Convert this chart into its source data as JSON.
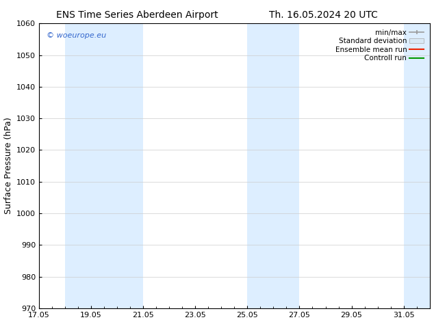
{
  "title_left": "ENS Time Series Aberdeen Airport",
  "title_right": "Th. 16.05.2024 20 UTC",
  "ylabel": "Surface Pressure (hPa)",
  "ylim": [
    970,
    1060
  ],
  "yticks": [
    970,
    980,
    990,
    1000,
    1010,
    1020,
    1030,
    1040,
    1050,
    1060
  ],
  "xlim": [
    0,
    15
  ],
  "xtick_positions": [
    0,
    2,
    4,
    6,
    8,
    10,
    12,
    14
  ],
  "xtick_labels": [
    "17.05",
    "19.05",
    "21.05",
    "23.05",
    "25.05",
    "27.05",
    "29.05",
    "31.05"
  ],
  "shade_bands": [
    {
      "x_start": 1.0,
      "x_end": 3.0,
      "color": "#ddeeff"
    },
    {
      "x_start": 3.0,
      "x_end": 4.0,
      "color": "#ddeeff"
    },
    {
      "x_start": 8.0,
      "x_end": 9.0,
      "color": "#ddeeff"
    },
    {
      "x_start": 9.0,
      "x_end": 10.0,
      "color": "#ddeeff"
    },
    {
      "x_start": 14.0,
      "x_end": 15.0,
      "color": "#ddeeff"
    }
  ],
  "copyright_text": "© woeurope.eu",
  "copyright_color": "#3366cc",
  "legend_entries": [
    "min/max",
    "Standard deviation",
    "Ensemble mean run",
    "Controll run"
  ],
  "legend_line_colors": [
    "#999999",
    "#bbbbbb",
    "#ee2200",
    "#009900"
  ],
  "bg_color": "#ffffff",
  "plot_bg_color": "#ffffff",
  "grid_color": "#cccccc",
  "title_fontsize": 10,
  "axis_label_fontsize": 9,
  "tick_fontsize": 8,
  "legend_fontsize": 7.5
}
